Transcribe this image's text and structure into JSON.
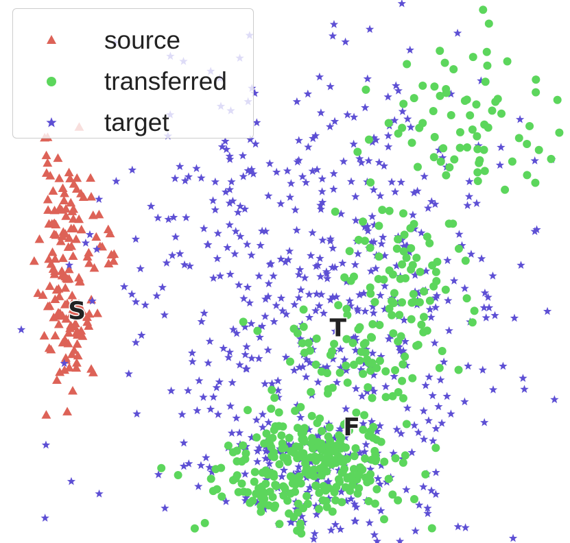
{
  "chart_data": {
    "type": "scatter",
    "title": "",
    "xlabel": "",
    "ylabel": "",
    "xlim": [
      0,
      100
    ],
    "ylim": [
      0,
      100
    ],
    "grid": false,
    "axes_visible": false,
    "legend_position": "top-left",
    "series": [
      {
        "name": "source",
        "marker": "triangle",
        "color": "#dd6257",
        "clusters": [
          {
            "cx": 11.2,
            "cy": 52,
            "sx": 2.2,
            "sy": 10,
            "count": 110,
            "seed": 11
          },
          {
            "cx": 17.5,
            "cy": 54.5,
            "sx": 1.3,
            "sy": 2.5,
            "count": 12,
            "seed": 12
          },
          {
            "cx": 12.5,
            "cy": 38,
            "sx": 1.5,
            "sy": 5,
            "count": 40,
            "seed": 13
          }
        ],
        "points": [
          [
            8.4,
            63.2
          ]
        ]
      },
      {
        "name": "transferred",
        "marker": "circle",
        "color": "#5cd65c",
        "clusters": [
          {
            "cx": 56,
            "cy": 15,
            "sx": 8,
            "sy": 5,
            "count": 210,
            "seed": 21
          },
          {
            "cx": 47,
            "cy": 11,
            "sx": 6,
            "sy": 4,
            "count": 60,
            "seed": 22
          },
          {
            "cx": 70,
            "cy": 48,
            "sx": 6,
            "sy": 9,
            "count": 80,
            "seed": 23
          },
          {
            "cx": 81,
            "cy": 76,
            "sx": 9,
            "sy": 7,
            "count": 70,
            "seed": 24
          },
          {
            "cx": 61,
            "cy": 34,
            "sx": 7,
            "sy": 5,
            "count": 60,
            "seed": 25
          }
        ],
        "points": [
          [
            83,
            89.5
          ],
          [
            89,
            88.7
          ],
          [
            94,
            83
          ]
        ]
      },
      {
        "name": "target",
        "marker": "star",
        "color": "#5d4fd4",
        "clusters": [
          {
            "cx": 58,
            "cy": 48,
            "sx": 19,
            "sy": 22,
            "count": 520,
            "seed": 31
          },
          {
            "cx": 55,
            "cy": 13,
            "sx": 12,
            "sy": 7,
            "count": 160,
            "seed": 32
          }
        ],
        "points": [
          [
            58.6,
            95.5
          ],
          [
            96.8,
            70.6
          ],
          [
            26.5,
            62
          ],
          [
            27.5,
            45.5
          ],
          [
            92,
            28.3
          ]
        ]
      }
    ],
    "annotations": [
      {
        "text": "S",
        "x": 13.5,
        "y": 42.5
      },
      {
        "text": "T",
        "x": 59.3,
        "y": 39.3
      },
      {
        "text": "F",
        "x": 61.7,
        "y": 21.1
      }
    ]
  }
}
